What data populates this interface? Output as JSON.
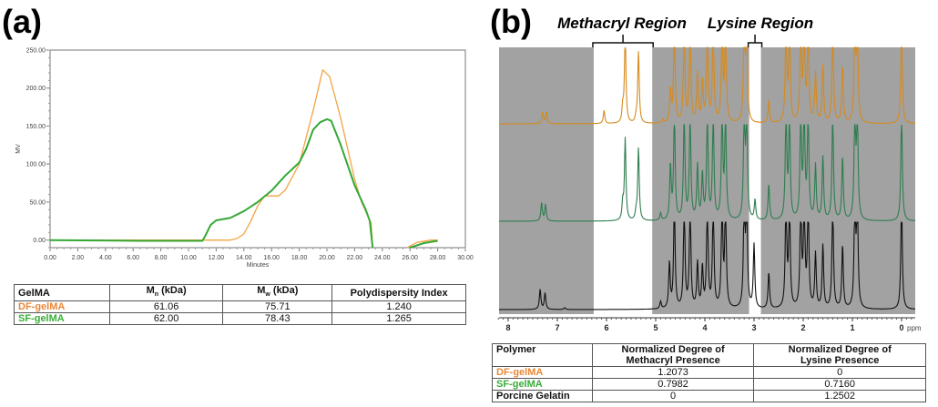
{
  "panel_a": {
    "label": "(a)"
  },
  "panel_b": {
    "label": "(b)",
    "methacryl_label": "Methacryl Region",
    "lysine_label": "Lysine Region"
  },
  "chart_data": [
    {
      "type": "line",
      "xlabel": "Minutes",
      "ylabel": "MV",
      "xlim": [
        0,
        30
      ],
      "ylim": [
        -10,
        250
      ],
      "x_ticks": [
        "0.00",
        "2.00",
        "4.00",
        "6.00",
        "8.00",
        "10.00",
        "12.00",
        "14.00",
        "16.00",
        "18.00",
        "20.00",
        "22.00",
        "24.00",
        "26.00",
        "28.00",
        "30.00"
      ],
      "y_ticks": [
        "0.00",
        "50.00",
        "100.00",
        "150.00",
        "200.00",
        "250.00"
      ],
      "grid": false,
      "series": [
        {
          "color": "#f2a444",
          "segments": [
            [
              [
                0,
                0
              ],
              [
                11,
                0
              ],
              [
                13,
                0
              ],
              [
                13.5,
                2
              ],
              [
                14,
                8
              ],
              [
                14.5,
                25
              ],
              [
                15,
                45
              ],
              [
                15.5,
                58
              ],
              [
                16.5,
                58
              ],
              [
                17,
                66
              ],
              [
                18,
                100
              ],
              [
                19,
                170
              ],
              [
                19.7,
                224
              ],
              [
                20.2,
                215
              ],
              [
                21,
                160
              ],
              [
                22,
                80
              ],
              [
                22.5,
                50
              ],
              [
                23,
                30
              ],
              [
                23.2,
                22
              ],
              [
                23.3,
                -10
              ]
            ],
            [
              [
                25.8,
                -10
              ],
              [
                26.5,
                -3
              ],
              [
                27.5,
                0
              ],
              [
                28,
                0
              ]
            ]
          ]
        },
        {
          "color": "#35a835",
          "segments": [
            [
              [
                0,
                0
              ],
              [
                6.5,
                -1
              ],
              [
                11,
                -1
              ],
              [
                11.2,
                5
              ],
              [
                11.6,
                20
              ],
              [
                12,
                26
              ],
              [
                13,
                29
              ],
              [
                14,
                38
              ],
              [
                15,
                50
              ],
              [
                16,
                65
              ],
              [
                17,
                85
              ],
              [
                18,
                102
              ],
              [
                18.5,
                120
              ],
              [
                19,
                145
              ],
              [
                19.5,
                155
              ],
              [
                20,
                159
              ],
              [
                20.3,
                157
              ],
              [
                21,
                125
              ],
              [
                22,
                72
              ],
              [
                22.8,
                40
              ],
              [
                23.1,
                25
              ],
              [
                23.3,
                -10
              ]
            ],
            [
              [
                26,
                -10
              ],
              [
                27,
                -4
              ],
              [
                28,
                -1
              ]
            ]
          ]
        }
      ]
    },
    {
      "type": "line",
      "xlabel": "ppm",
      "xlim": [
        8.2,
        -0.28
      ],
      "x_ticks": [
        "8",
        "7",
        "6",
        "5",
        "4",
        "3",
        "2",
        "1",
        "0"
      ],
      "highlight_regions_ppm": [
        [
          6.26,
          5.07
        ],
        [
          3.1,
          2.86
        ]
      ],
      "series": [
        {
          "color": "#d68a1c",
          "peaks": [
            [
              7.3,
              14
            ],
            [
              7.22,
              14
            ],
            [
              6.05,
              16
            ],
            [
              5.67,
              18
            ],
            [
              5.62,
              110
            ],
            [
              5.4,
              6
            ],
            [
              5.35,
              88
            ],
            [
              4.85,
              4
            ],
            [
              4.7,
              40
            ],
            [
              4.62,
              120
            ],
            [
              4.42,
              120
            ],
            [
              4.3,
              120
            ],
            [
              4.15,
              60
            ],
            [
              4.05,
              50
            ],
            [
              3.95,
              120
            ],
            [
              3.83,
              120
            ],
            [
              3.65,
              120
            ],
            [
              3.58,
              120
            ],
            [
              3.2,
              120
            ],
            [
              3.15,
              120
            ],
            [
              2.7,
              28
            ],
            [
              2.35,
              120
            ],
            [
              2.28,
              120
            ],
            [
              2.05,
              120
            ],
            [
              1.98,
              120
            ],
            [
              1.9,
              120
            ],
            [
              1.75,
              60
            ],
            [
              1.6,
              70
            ],
            [
              1.4,
              120
            ],
            [
              1.2,
              70
            ],
            [
              0.95,
              120
            ],
            [
              0.9,
              120
            ],
            [
              0.0,
              120
            ]
          ]
        },
        {
          "color": "#2e7d4f",
          "peaks": [
            [
              7.32,
              20
            ],
            [
              7.24,
              18
            ],
            [
              5.67,
              18
            ],
            [
              5.62,
              90
            ],
            [
              5.4,
              8
            ],
            [
              5.35,
              80
            ],
            [
              4.9,
              8
            ],
            [
              4.7,
              60
            ],
            [
              4.62,
              120
            ],
            [
              4.42,
              120
            ],
            [
              4.3,
              120
            ],
            [
              4.15,
              60
            ],
            [
              4.05,
              50
            ],
            [
              3.95,
              120
            ],
            [
              3.83,
              120
            ],
            [
              3.65,
              120
            ],
            [
              3.58,
              120
            ],
            [
              3.2,
              120
            ],
            [
              3.15,
              120
            ],
            [
              2.98,
              22
            ],
            [
              2.7,
              40
            ],
            [
              2.35,
              120
            ],
            [
              2.28,
              120
            ],
            [
              2.05,
              120
            ],
            [
              1.98,
              120
            ],
            [
              1.9,
              120
            ],
            [
              1.75,
              60
            ],
            [
              1.6,
              70
            ],
            [
              1.4,
              120
            ],
            [
              1.2,
              70
            ],
            [
              0.95,
              120
            ],
            [
              0.9,
              120
            ],
            [
              0.0,
              120
            ]
          ]
        },
        {
          "color": "#111111",
          "peaks": [
            [
              7.35,
              22
            ],
            [
              7.25,
              18
            ],
            [
              6.85,
              2
            ],
            [
              4.9,
              8
            ],
            [
              4.72,
              50
            ],
            [
              4.62,
              120
            ],
            [
              4.42,
              120
            ],
            [
              4.3,
              120
            ],
            [
              4.15,
              50
            ],
            [
              4.05,
              45
            ],
            [
              3.95,
              120
            ],
            [
              3.83,
              120
            ],
            [
              3.65,
              120
            ],
            [
              3.58,
              120
            ],
            [
              3.2,
              120
            ],
            [
              3.15,
              120
            ],
            [
              3.0,
              70
            ],
            [
              2.7,
              40
            ],
            [
              2.35,
              120
            ],
            [
              2.28,
              120
            ],
            [
              2.05,
              120
            ],
            [
              1.98,
              120
            ],
            [
              1.9,
              120
            ],
            [
              1.75,
              60
            ],
            [
              1.6,
              70
            ],
            [
              1.4,
              120
            ],
            [
              1.2,
              70
            ],
            [
              0.95,
              120
            ],
            [
              0.9,
              120
            ],
            [
              0.0,
              120
            ]
          ]
        }
      ]
    }
  ],
  "table_a": {
    "headers": [
      {
        "main": "GelMA",
        "sub": "",
        "rest": ""
      },
      {
        "main": "M",
        "sub": "n",
        "rest": " (kDa)"
      },
      {
        "main": "M",
        "sub": "w",
        "rest": " (kDa)"
      },
      {
        "main": "Polydispersity Index",
        "sub": "",
        "rest": ""
      }
    ],
    "rows": [
      [
        "DF-gelMA",
        "61.06",
        "75.71",
        "1.240"
      ],
      [
        "SF-gelMA",
        "62.00",
        "78.43",
        "1.265"
      ]
    ]
  },
  "table_b": {
    "headers": [
      "Polymer",
      "Normalized Degree of Methacryl Presence",
      "Normalized Degree of Lysine Presence"
    ],
    "header_lines": [
      [
        "Polymer",
        ""
      ],
      [
        "Normalized Degree of",
        "Methacryl Presence"
      ],
      [
        "Normalized Degree of",
        "Lysine Presence"
      ]
    ],
    "rows": [
      [
        "DF-gelMA",
        "1.2073",
        "0"
      ],
      [
        "SF-gelMA",
        "0.7982",
        "0.7160"
      ],
      [
        "Porcine Gelatin",
        "0",
        "1.2502"
      ]
    ]
  }
}
